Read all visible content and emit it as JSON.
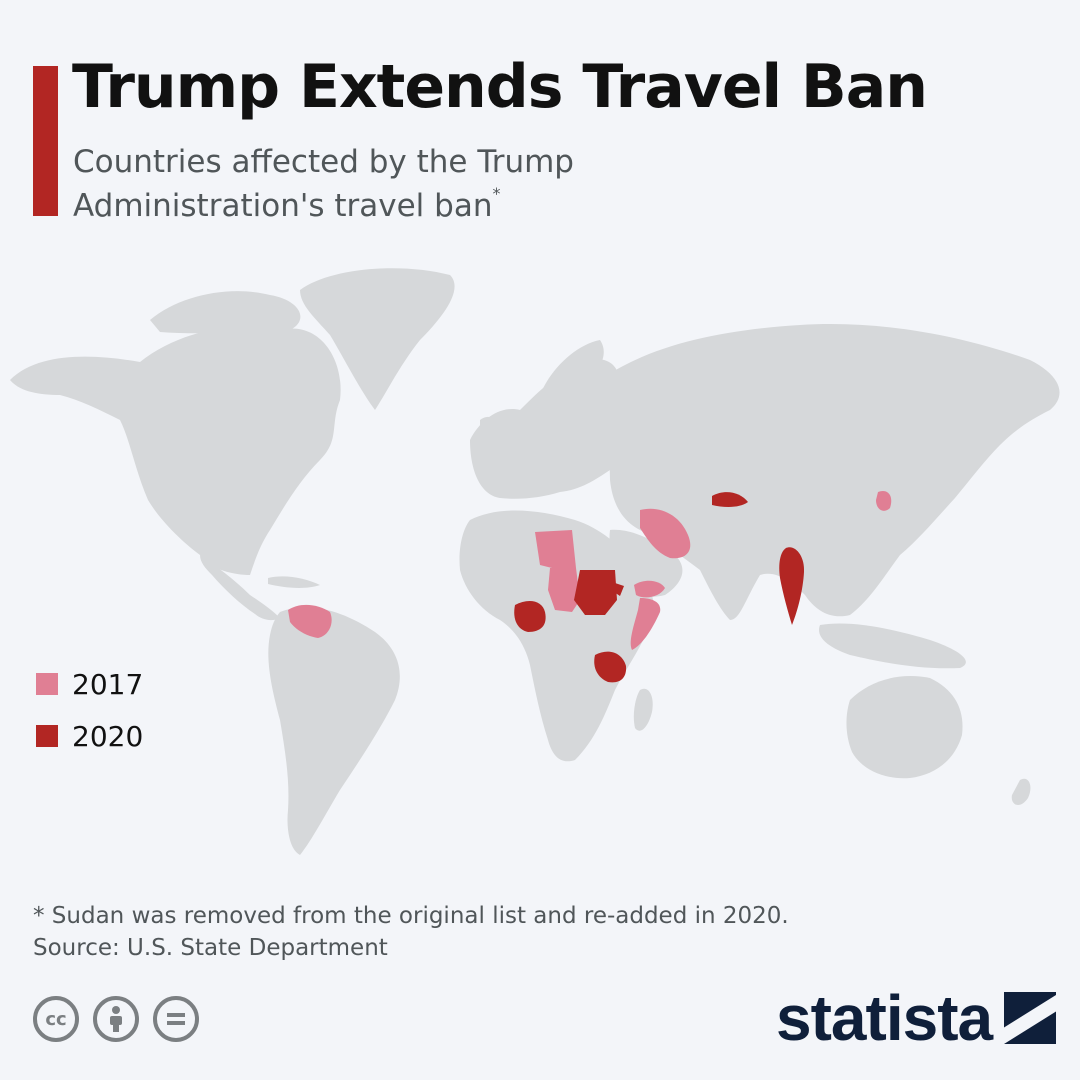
{
  "header": {
    "title": "Trump Extends Travel Ban",
    "subtitle": "Countries affected by the Trump Administration's travel ban",
    "subtitle_marker": "*"
  },
  "colors": {
    "accent": "#b22623",
    "land": "#d6d8da",
    "ban_2017": "#e07f94",
    "ban_2020": "#b22623",
    "background": "#f3f5f9"
  },
  "legend": {
    "items": [
      {
        "label": "2017",
        "color": "#e07f94"
      },
      {
        "label": "2020",
        "color": "#b22623"
      }
    ]
  },
  "highlighted_countries": {
    "ban_2017": [
      "Venezuela",
      "Libya",
      "Chad",
      "Yemen",
      "Iran",
      "Somalia",
      "North Korea"
    ],
    "ban_2020": [
      "Nigeria",
      "Sudan",
      "Eritrea",
      "Tanzania",
      "Kyrgyzstan",
      "Myanmar"
    ]
  },
  "footer": {
    "footnote": "* Sudan was removed from the original list and re-added in 2020.",
    "source": "Source: U.S. State Department"
  },
  "license_icons": [
    "cc-icon",
    "attribution-person-icon",
    "no-derivatives-equal-icon"
  ],
  "brand": {
    "logo_text": "statista"
  }
}
